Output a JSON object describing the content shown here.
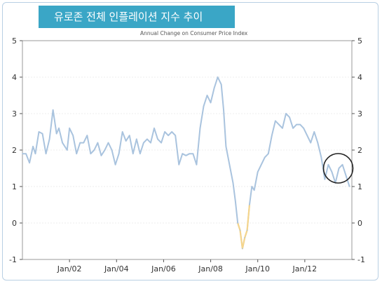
{
  "header": {
    "banner_title": "유로존 전체 인플레이션 지수 추이",
    "subtitle": "Annual Change on Consumer Price Index"
  },
  "colors": {
    "banner": "#3aa6c6",
    "line": "#a9c3de",
    "negative": "#f5d58c",
    "circle": "#222222",
    "grid": "#d9d9d9"
  },
  "chart_data": {
    "type": "line",
    "title": "Annual Change on Consumer Price Index",
    "xlabel": "",
    "ylabel": "",
    "ylim": [
      -1,
      5
    ],
    "xlim": [
      2000.0,
      2014.0
    ],
    "yticks": [
      -1,
      0,
      1,
      2,
      3,
      4,
      5
    ],
    "xticks": [
      {
        "label": "Jan/02",
        "value": 2002.0
      },
      {
        "label": "Jan/04",
        "value": 2004.0
      },
      {
        "label": "Jan/06",
        "value": 2006.0
      },
      {
        "label": "Jan/08",
        "value": 2008.0
      },
      {
        "label": "Jan/10",
        "value": 2010.0
      },
      {
        "label": "Jan/12",
        "value": 2012.0
      }
    ],
    "grid": true,
    "highlight_circle": {
      "x": 2013.42,
      "y": 1.5
    },
    "series": [
      {
        "name": "",
        "x": [
          2000.0,
          2000.15,
          2000.3,
          2000.45,
          2000.55,
          2000.7,
          2000.85,
          2001.0,
          2001.15,
          2001.3,
          2001.45,
          2001.55,
          2001.7,
          2001.9,
          2002.0,
          2002.15,
          2002.3,
          2002.45,
          2002.6,
          2002.75,
          2002.9,
          2003.05,
          2003.2,
          2003.35,
          2003.5,
          2003.65,
          2003.8,
          2003.95,
          2004.1,
          2004.25,
          2004.4,
          2004.55,
          2004.7,
          2004.85,
          2005.0,
          2005.15,
          2005.3,
          2005.45,
          2005.6,
          2005.75,
          2005.9,
          2006.05,
          2006.2,
          2006.35,
          2006.5,
          2006.65,
          2006.8,
          2006.95,
          2007.1,
          2007.25,
          2007.4,
          2007.55,
          2007.7,
          2007.85,
          2008.0,
          2008.15,
          2008.3,
          2008.45,
          2008.55,
          2008.65,
          2008.8,
          2008.95,
          2009.05,
          2009.15,
          2009.25,
          2009.35,
          2009.45,
          2009.55,
          2009.65,
          2009.75,
          2009.85,
          2010.0,
          2010.15,
          2010.3,
          2010.45,
          2010.6,
          2010.75,
          2010.9,
          2011.05,
          2011.2,
          2011.35,
          2011.5,
          2011.65,
          2011.8,
          2011.95,
          2012.1,
          2012.25,
          2012.4,
          2012.55,
          2012.7,
          2012.85,
          2013.0,
          2013.15,
          2013.3,
          2013.45,
          2013.6,
          2013.75,
          2013.9
        ],
        "values": [
          1.9,
          1.9,
          1.65,
          2.1,
          1.9,
          2.5,
          2.45,
          1.9,
          2.3,
          3.1,
          2.45,
          2.6,
          2.2,
          2.0,
          2.6,
          2.4,
          1.9,
          2.2,
          2.2,
          2.4,
          1.9,
          2.0,
          2.2,
          1.85,
          2.0,
          2.2,
          2.0,
          1.6,
          1.9,
          2.5,
          2.25,
          2.4,
          1.9,
          2.3,
          1.9,
          2.2,
          2.3,
          2.2,
          2.6,
          2.3,
          2.2,
          2.5,
          2.4,
          2.5,
          2.4,
          1.6,
          1.9,
          1.85,
          1.9,
          1.9,
          1.6,
          2.6,
          3.2,
          3.5,
          3.3,
          3.7,
          4.0,
          3.8,
          3.1,
          2.1,
          1.6,
          1.1,
          0.6,
          0.0,
          -0.2,
          -0.7,
          -0.4,
          -0.2,
          0.5,
          1.0,
          0.9,
          1.4,
          1.6,
          1.8,
          1.9,
          2.4,
          2.8,
          2.7,
          2.6,
          3.0,
          2.9,
          2.6,
          2.7,
          2.7,
          2.6,
          2.4,
          2.2,
          2.5,
          2.2,
          1.8,
          1.2,
          1.6,
          1.4,
          1.1,
          1.5,
          1.6,
          1.3,
          1.0
        ]
      }
    ]
  }
}
